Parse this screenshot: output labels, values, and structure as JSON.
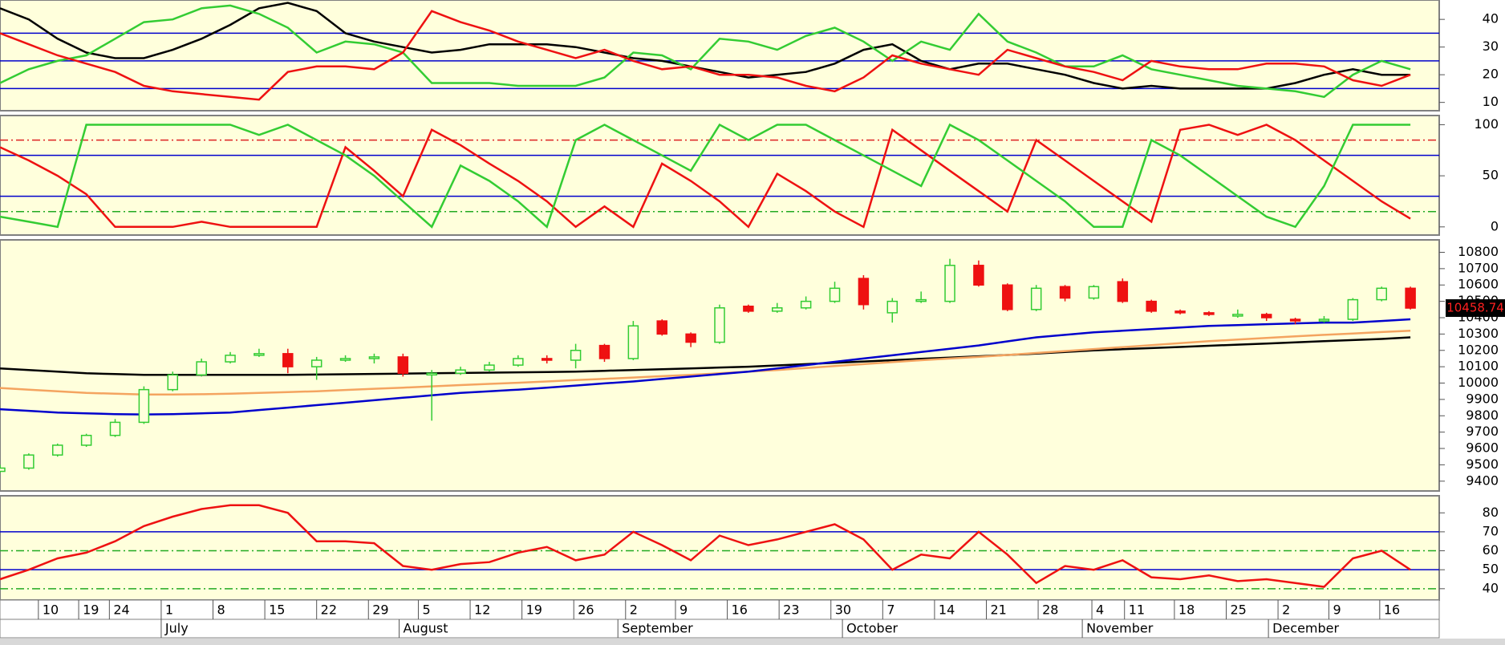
{
  "chart_data": [
    {
      "type": "line",
      "xlim": [
        0,
        150
      ],
      "ylim": [
        7,
        47
      ],
      "yticks": [
        10,
        20,
        30,
        40
      ],
      "x": [
        0,
        3,
        6,
        9,
        12,
        15,
        18,
        21,
        24,
        27,
        30,
        33,
        36,
        39,
        42,
        45,
        48,
        51,
        54,
        57,
        60,
        63,
        66,
        69,
        72,
        75,
        78,
        81,
        84,
        87,
        90,
        93,
        96,
        99,
        102,
        105,
        108,
        111,
        114,
        117,
        120,
        123,
        126,
        129,
        132,
        135,
        138,
        141,
        144,
        147
      ],
      "hlines": [
        {
          "value": 35,
          "color": "#0000cc",
          "dash": false
        },
        {
          "value": 25,
          "color": "#0000cc",
          "dash": false
        },
        {
          "value": 15,
          "color": "#0000cc",
          "dash": false
        }
      ],
      "series": [
        {
          "color": "#000000",
          "values": [
            44,
            40,
            33,
            28,
            26,
            26,
            29,
            33,
            38,
            44,
            46,
            43,
            35,
            32,
            30,
            28,
            29,
            31,
            31,
            31,
            30,
            28,
            26,
            25,
            23,
            21,
            19,
            20,
            21,
            24,
            29,
            31,
            25,
            22,
            24,
            24,
            22,
            20,
            17,
            15,
            16,
            15,
            15,
            15,
            15,
            17,
            20,
            22,
            20,
            20
          ]
        },
        {
          "color": "#33cc33",
          "values": [
            17,
            22,
            25,
            27,
            33,
            39,
            40,
            44,
            45,
            42,
            37,
            28,
            32,
            31,
            28,
            17,
            17,
            17,
            16,
            16,
            16,
            19,
            28,
            27,
            22,
            33,
            32,
            29,
            34,
            37,
            32,
            25,
            32,
            29,
            42,
            32,
            28,
            23,
            23,
            27,
            22,
            20,
            18,
            16,
            15,
            14,
            12,
            20,
            25,
            22
          ]
        },
        {
          "color": "#ee1111",
          "values": [
            35,
            31,
            27,
            24,
            21,
            16,
            14,
            13,
            12,
            11,
            21,
            23,
            23,
            22,
            28,
            43,
            39,
            36,
            32,
            29,
            26,
            29,
            25,
            22,
            23,
            20,
            20,
            19,
            16,
            14,
            19,
            27,
            24,
            22,
            20,
            29,
            26,
            23,
            21,
            18,
            25,
            23,
            22,
            22,
            24,
            24,
            23,
            18,
            16,
            20
          ]
        }
      ]
    },
    {
      "type": "line",
      "xlim": [
        0,
        150
      ],
      "ylim": [
        -8,
        109
      ],
      "yticks": [
        0,
        50,
        100
      ],
      "x": [
        0,
        3,
        6,
        9,
        12,
        15,
        18,
        21,
        24,
        27,
        30,
        33,
        36,
        39,
        42,
        45,
        48,
        51,
        54,
        57,
        60,
        63,
        66,
        69,
        72,
        75,
        78,
        81,
        84,
        87,
        90,
        93,
        96,
        99,
        102,
        105,
        108,
        111,
        114,
        117,
        120,
        123,
        126,
        129,
        132,
        135,
        138,
        141,
        144,
        147
      ],
      "hlines": [
        {
          "value": 85,
          "color": "#dd2222",
          "dash": true
        },
        {
          "value": 70,
          "color": "#0000cc",
          "dash": false
        },
        {
          "value": 30,
          "color": "#0000cc",
          "dash": false
        },
        {
          "value": 15,
          "color": "#22aa22",
          "dash": true
        }
      ],
      "series": [
        {
          "color": "#ee1111",
          "values": [
            78,
            65,
            50,
            32,
            0,
            0,
            0,
            5,
            0,
            0,
            0,
            0,
            78,
            55,
            30,
            95,
            80,
            62,
            45,
            25,
            0,
            20,
            0,
            62,
            45,
            25,
            0,
            52,
            35,
            15,
            0,
            95,
            75,
            55,
            35,
            15,
            85,
            65,
            45,
            25,
            5,
            95,
            100,
            90,
            100,
            85,
            65,
            45,
            25,
            8
          ]
        },
        {
          "color": "#33cc33",
          "values": [
            10,
            5,
            0,
            100,
            100,
            100,
            100,
            100,
            100,
            90,
            100,
            85,
            70,
            50,
            25,
            0,
            60,
            45,
            25,
            0,
            85,
            100,
            85,
            70,
            55,
            100,
            85,
            100,
            100,
            85,
            70,
            55,
            40,
            100,
            85,
            65,
            45,
            25,
            0,
            0,
            85,
            70,
            50,
            30,
            10,
            0,
            40,
            100,
            100,
            100
          ]
        }
      ]
    },
    {
      "type": "candlestick",
      "xlim": [
        0,
        150
      ],
      "ylim": [
        9340,
        10876
      ],
      "yticks": [
        9400,
        9500,
        9600,
        9700,
        9800,
        9900,
        10000,
        10100,
        10200,
        10300,
        10400,
        10500,
        10600,
        10700,
        10800
      ],
      "x": [
        0,
        3,
        6,
        9,
        12,
        15,
        18,
        21,
        24,
        27,
        30,
        33,
        36,
        39,
        42,
        45,
        48,
        51,
        54,
        57,
        60,
        63,
        66,
        69,
        72,
        75,
        78,
        81,
        84,
        87,
        90,
        93,
        96,
        99,
        102,
        105,
        108,
        111,
        114,
        117,
        120,
        123,
        126,
        129,
        132,
        135,
        138,
        141,
        144,
        147
      ],
      "up_color": "#33cc33",
      "down_color": "#ee1111",
      "last_price": 10458.74,
      "open": [
        9460,
        9480,
        9560,
        9620,
        9680,
        9760,
        9960,
        10050,
        10130,
        10170,
        10180,
        10100,
        10140,
        10150,
        10160,
        10050,
        10060,
        10080,
        10110,
        10150,
        10140,
        10230,
        10150,
        10380,
        10300,
        10250,
        10470,
        10440,
        10460,
        10500,
        10640,
        10430,
        10500,
        10500,
        10720,
        10600,
        10450,
        10590,
        10520,
        10620,
        10500,
        10440,
        10430,
        10410,
        10420,
        10390,
        10380,
        10390,
        10510,
        10580
      ],
      "high": [
        9500,
        9570,
        9630,
        9690,
        9780,
        9980,
        10070,
        10150,
        10190,
        10210,
        10210,
        10160,
        10170,
        10180,
        10180,
        10080,
        10100,
        10130,
        10170,
        10170,
        10240,
        10240,
        10380,
        10390,
        10310,
        10480,
        10480,
        10490,
        10530,
        10620,
        10660,
        10520,
        10560,
        10760,
        10750,
        10610,
        10600,
        10600,
        10600,
        10640,
        10510,
        10450,
        10440,
        10450,
        10430,
        10400,
        10410,
        10520,
        10590,
        10590
      ],
      "low": [
        9450,
        9470,
        9550,
        9610,
        9670,
        9750,
        9950,
        10040,
        10120,
        10160,
        10060,
        10020,
        10130,
        10120,
        10040,
        9770,
        10050,
        10070,
        10100,
        10120,
        10090,
        10130,
        10140,
        10290,
        10220,
        10240,
        10430,
        10430,
        10450,
        10490,
        10450,
        10370,
        10490,
        10490,
        10590,
        10440,
        10440,
        10500,
        10510,
        10490,
        10430,
        10420,
        10410,
        10400,
        10380,
        10360,
        10370,
        10380,
        10500,
        10450
      ],
      "close": [
        9480,
        9560,
        9620,
        9680,
        9760,
        9960,
        10050,
        10130,
        10170,
        10180,
        10100,
        10140,
        10150,
        10160,
        10060,
        10060,
        10080,
        10110,
        10150,
        10140,
        10200,
        10150,
        10350,
        10300,
        10250,
        10460,
        10440,
        10460,
        10500,
        10580,
        10480,
        10500,
        10510,
        10720,
        10600,
        10450,
        10580,
        10520,
        10590,
        10500,
        10440,
        10430,
        10420,
        10420,
        10400,
        10380,
        10390,
        10510,
        10580,
        10458.74
      ],
      "series": [
        {
          "color": "#000000",
          "values": [
            10090,
            10080,
            10070,
            10060,
            10055,
            10050,
            10050,
            10050,
            10050,
            10050,
            10050,
            10052,
            10054,
            10056,
            10058,
            10060,
            10062,
            10064,
            10066,
            10068,
            10070,
            10075,
            10080,
            10085,
            10090,
            10095,
            10100,
            10108,
            10116,
            10124,
            10132,
            10140,
            10148,
            10156,
            10164,
            10172,
            10180,
            10190,
            10200,
            10207,
            10214,
            10221,
            10228,
            10235,
            10242,
            10249,
            10256,
            10263,
            10270,
            10280
          ]
        },
        {
          "color": "#f4a460",
          "values": [
            9970,
            9960,
            9950,
            9940,
            9935,
            9930,
            9930,
            9932,
            9935,
            9940,
            9945,
            9950,
            9958,
            9965,
            9972,
            9980,
            9988,
            9995,
            10002,
            10010,
            10018,
            10026,
            10034,
            10042,
            10050,
            10060,
            10070,
            10080,
            10092,
            10104,
            10116,
            10128,
            10140,
            10150,
            10160,
            10172,
            10184,
            10196,
            10208,
            10220,
            10232,
            10244,
            10256,
            10266,
            10276,
            10286,
            10295,
            10303,
            10312,
            10320
          ]
        },
        {
          "color": "#0000cc",
          "values": [
            9840,
            9830,
            9820,
            9815,
            9810,
            9808,
            9810,
            9815,
            9820,
            9835,
            9850,
            9865,
            9880,
            9895,
            9910,
            9925,
            9940,
            9950,
            9960,
            9972,
            9985,
            9998,
            10010,
            10025,
            10040,
            10055,
            10070,
            10090,
            10110,
            10130,
            10150,
            10170,
            10190,
            10210,
            10230,
            10255,
            10280,
            10295,
            10310,
            10320,
            10330,
            10340,
            10350,
            10355,
            10360,
            10365,
            10370,
            10370,
            10380,
            10390
          ]
        }
      ]
    },
    {
      "type": "line",
      "xlim": [
        0,
        150
      ],
      "ylim": [
        34,
        89
      ],
      "yticks": [
        40,
        50,
        60,
        70,
        80
      ],
      "x": [
        0,
        3,
        6,
        9,
        12,
        15,
        18,
        21,
        24,
        27,
        30,
        33,
        36,
        39,
        42,
        45,
        48,
        51,
        54,
        57,
        60,
        63,
        66,
        69,
        72,
        75,
        78,
        81,
        84,
        87,
        90,
        93,
        96,
        99,
        102,
        105,
        108,
        111,
        114,
        117,
        120,
        123,
        126,
        129,
        132,
        135,
        138,
        141,
        144,
        147
      ],
      "hlines": [
        {
          "value": 70,
          "color": "#0000cc",
          "dash": false
        },
        {
          "value": 60,
          "color": "#22aa22",
          "dash": true
        },
        {
          "value": 50,
          "color": "#0000cc",
          "dash": false
        },
        {
          "value": 40,
          "color": "#22aa22",
          "dash": true
        }
      ],
      "series": [
        {
          "color": "#ee1111",
          "values": [
            45,
            50,
            56,
            59,
            65,
            73,
            78,
            82,
            84,
            84,
            80,
            65,
            65,
            64,
            52,
            50,
            53,
            54,
            59,
            62,
            55,
            58,
            70,
            63,
            55,
            68,
            63,
            66,
            70,
            74,
            66,
            50,
            58,
            56,
            70,
            58,
            43,
            52,
            50,
            55,
            46,
            45,
            47,
            44,
            45,
            43,
            41,
            56,
            60,
            50
          ]
        }
      ],
      "xticks": [
        {
          "value": 4,
          "label": "10"
        },
        {
          "value": 8.2,
          "label": "19"
        },
        {
          "value": 11.4,
          "label": "24"
        },
        {
          "value": 16.8,
          "label": "1"
        },
        {
          "value": 22.2,
          "label": "8"
        },
        {
          "value": 27.6,
          "label": "15"
        },
        {
          "value": 33,
          "label": "22"
        },
        {
          "value": 38.4,
          "label": "29"
        },
        {
          "value": 43.6,
          "label": "5"
        },
        {
          "value": 49,
          "label": "12"
        },
        {
          "value": 54.4,
          "label": "19"
        },
        {
          "value": 59.8,
          "label": "26"
        },
        {
          "value": 65.2,
          "label": "2"
        },
        {
          "value": 70.4,
          "label": "9"
        },
        {
          "value": 75.8,
          "label": "16"
        },
        {
          "value": 81.2,
          "label": "23"
        },
        {
          "value": 86.6,
          "label": "30"
        },
        {
          "value": 92,
          "label": "7"
        },
        {
          "value": 97.4,
          "label": "14"
        },
        {
          "value": 102.8,
          "label": "21"
        },
        {
          "value": 108.2,
          "label": "28"
        },
        {
          "value": 113.8,
          "label": "4"
        },
        {
          "value": 117.2,
          "label": "11"
        },
        {
          "value": 122.4,
          "label": "18"
        },
        {
          "value": 127.8,
          "label": "25"
        },
        {
          "value": 133.2,
          "label": "2"
        },
        {
          "value": 138.5,
          "label": "9"
        },
        {
          "value": 143.8,
          "label": "16"
        }
      ],
      "month_ticks": [
        {
          "value": 16.8,
          "label": "July"
        },
        {
          "value": 41.6,
          "label": "August"
        },
        {
          "value": 64.4,
          "label": "September"
        },
        {
          "value": 87.8,
          "label": "October"
        },
        {
          "value": 112.8,
          "label": "November"
        },
        {
          "value": 132.2,
          "label": "December"
        }
      ]
    }
  ]
}
